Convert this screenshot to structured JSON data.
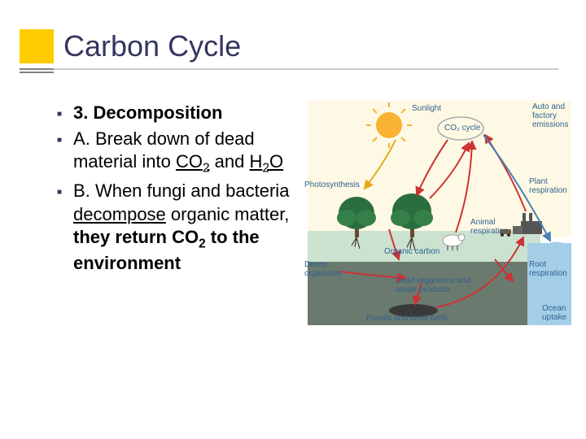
{
  "title": "Carbon Cycle",
  "bullets": [
    {
      "html": "<span class='bold'>3. Decomposition</span>"
    },
    {
      "html": "A. Break down of dead material into <span class='underline'>CO<sub>2</sub></span> and <span class='underline'>H<sub>2</sub>O</span>"
    },
    {
      "html": "B. When fungi and bacteria <span class='underline'>decompose</span> organic matter, <span class='bold'>they return CO<sub>2</sub> to the environment</span>"
    }
  ],
  "diagram": {
    "background_sky": "#fef9e4",
    "background_water": "#a4cee7",
    "background_ground": "#cbe2d1",
    "background_underground": "#6b7a6e",
    "sun_color": "#f9b233",
    "tree_color": "#2a6e3f",
    "arrow_color": "#cc3333",
    "arrow_blue": "#4a7fb5",
    "label_color": "#30608f",
    "labels": {
      "sunlight": "Sunlight",
      "co2_cycle": "CO₂ cycle",
      "auto_factory": "Auto and factory emissions",
      "photosynthesis": "Photosynthesis",
      "plant_resp": "Plant respiration",
      "organic_carbon": "Organic carbon",
      "animal_resp": "Animal respiration",
      "decay": "Decay organisms",
      "dead_organisms": "Dead organisms and waste products",
      "root_resp": "Root respiration",
      "fossils": "Fossils and fossil fuels",
      "ocean_uptake": "Ocean uptake"
    }
  },
  "colors": {
    "accent_yellow": "#ffcc00",
    "title_color": "#35355f",
    "text_color": "#000000"
  }
}
